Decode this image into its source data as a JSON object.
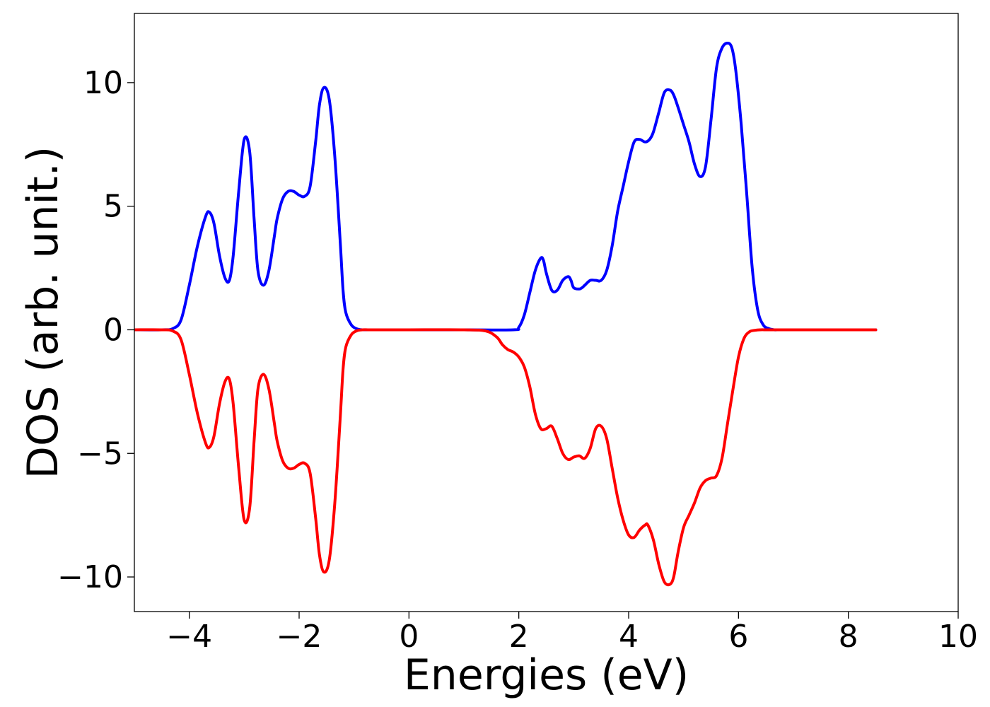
{
  "chart_data": {
    "type": "line",
    "title": "",
    "xlabel": "Energies (eV)",
    "ylabel": "DOS (arb. unit.)",
    "xlim": [
      -5,
      10
    ],
    "ylim": [
      -11.4,
      12.8
    ],
    "xticks": [
      -4,
      -2,
      0,
      2,
      4,
      6,
      8,
      10
    ],
    "xtick_labels": [
      "−4",
      "−2",
      "0",
      "2",
      "4",
      "6",
      "8",
      "10"
    ],
    "yticks": [
      -10,
      -5,
      0,
      5,
      10
    ],
    "ytick_labels": [
      "−10",
      "−5",
      "0",
      "5",
      "10"
    ],
    "grid": false,
    "legend": "none",
    "series": [
      {
        "color": "#0000ff",
        "x": [
          -5,
          -4.5,
          -4.3,
          -4.15,
          -4.0,
          -3.85,
          -3.7,
          -3.63,
          -3.55,
          -3.45,
          -3.35,
          -3.27,
          -3.2,
          -3.1,
          -3.0,
          -2.9,
          -2.82,
          -2.75,
          -2.65,
          -2.55,
          -2.45,
          -2.4,
          -2.3,
          -2.2,
          -2.1,
          -2.0,
          -1.9,
          -1.8,
          -1.7,
          -1.63,
          -1.55,
          -1.45,
          -1.35,
          -1.25,
          -1.2,
          -1.15,
          -1.05,
          -0.95,
          -0.85,
          -0.75,
          -0.65,
          -0.5,
          0,
          1.0,
          1.9,
          2.0,
          2.1,
          2.2,
          2.3,
          2.4,
          2.45,
          2.5,
          2.6,
          2.7,
          2.8,
          2.9,
          2.95,
          3.0,
          3.1,
          3.15,
          3.2,
          3.3,
          3.4,
          3.5,
          3.6,
          3.7,
          3.8,
          3.9,
          4.0,
          4.1,
          4.2,
          4.3,
          4.38,
          4.45,
          4.55,
          4.65,
          4.75,
          4.82,
          4.9,
          5.0,
          5.1,
          5.2,
          5.3,
          5.4,
          5.5,
          5.6,
          5.7,
          5.8,
          5.88,
          5.95,
          6.05,
          6.15,
          6.25,
          6.35,
          6.45,
          6.55,
          6.65,
          6.75,
          7.0,
          8.5
        ],
        "y": [
          0,
          0,
          0.05,
          0.4,
          1.8,
          3.4,
          4.6,
          4.75,
          4.3,
          3.0,
          2.1,
          2.0,
          3.0,
          5.6,
          7.7,
          7.2,
          4.5,
          2.4,
          1.8,
          2.4,
          3.8,
          4.5,
          5.3,
          5.6,
          5.6,
          5.45,
          5.4,
          5.8,
          7.6,
          9.1,
          9.8,
          9.3,
          7.0,
          3.5,
          1.6,
          0.7,
          0.2,
          0.04,
          0,
          0,
          0,
          0,
          0,
          0,
          0,
          0.1,
          0.6,
          1.5,
          2.4,
          2.9,
          2.8,
          2.3,
          1.6,
          1.6,
          2.0,
          2.15,
          2.0,
          1.7,
          1.65,
          1.7,
          1.8,
          2.0,
          2.0,
          2.0,
          2.4,
          3.4,
          4.8,
          5.8,
          6.8,
          7.6,
          7.7,
          7.6,
          7.7,
          8.0,
          8.8,
          9.6,
          9.7,
          9.5,
          9.0,
          8.3,
          7.6,
          6.7,
          6.2,
          6.6,
          8.5,
          10.6,
          11.4,
          11.6,
          11.4,
          10.5,
          8.3,
          5.5,
          2.5,
          0.8,
          0.2,
          0.05,
          0,
          0,
          0,
          0
        ]
      },
      {
        "color": "#ff0000",
        "x": [
          -5,
          -4.5,
          -4.3,
          -4.15,
          -4.0,
          -3.85,
          -3.7,
          -3.63,
          -3.55,
          -3.45,
          -3.35,
          -3.27,
          -3.2,
          -3.1,
          -3.0,
          -2.9,
          -2.82,
          -2.75,
          -2.65,
          -2.55,
          -2.45,
          -2.4,
          -2.3,
          -2.2,
          -2.1,
          -2.0,
          -1.9,
          -1.8,
          -1.7,
          -1.63,
          -1.55,
          -1.45,
          -1.35,
          -1.25,
          -1.2,
          -1.15,
          -1.05,
          -0.95,
          -0.85,
          -0.75,
          -0.65,
          -0.5,
          0,
          1.0,
          1.4,
          1.6,
          1.7,
          1.8,
          1.9,
          2.0,
          2.1,
          2.2,
          2.3,
          2.4,
          2.5,
          2.6,
          2.7,
          2.8,
          2.9,
          3.0,
          3.1,
          3.2,
          3.3,
          3.4,
          3.5,
          3.6,
          3.7,
          3.8,
          3.9,
          4.0,
          4.1,
          4.2,
          4.3,
          4.35,
          4.45,
          4.55,
          4.65,
          4.75,
          4.82,
          4.9,
          5.0,
          5.1,
          5.2,
          5.3,
          5.4,
          5.5,
          5.6,
          5.7,
          5.8,
          5.9,
          6.0,
          6.1,
          6.2,
          6.3,
          6.4,
          6.5,
          6.6,
          6.8,
          7.0,
          8.5
        ],
        "y": [
          0,
          0,
          -0.05,
          -0.4,
          -1.8,
          -3.4,
          -4.6,
          -4.75,
          -4.3,
          -3.0,
          -2.1,
          -2.0,
          -3.0,
          -5.6,
          -7.7,
          -7.2,
          -4.5,
          -2.4,
          -1.8,
          -2.4,
          -3.8,
          -4.5,
          -5.3,
          -5.6,
          -5.6,
          -5.45,
          -5.4,
          -5.8,
          -7.6,
          -9.1,
          -9.8,
          -9.3,
          -7.0,
          -3.5,
          -1.6,
          -0.7,
          -0.2,
          -0.04,
          0,
          0,
          0,
          0,
          0,
          0,
          -0.05,
          -0.3,
          -0.6,
          -0.8,
          -0.9,
          -1.1,
          -1.5,
          -2.3,
          -3.4,
          -4.0,
          -4.0,
          -3.9,
          -4.4,
          -5.0,
          -5.25,
          -5.15,
          -5.1,
          -5.2,
          -4.8,
          -4.0,
          -3.9,
          -4.4,
          -5.6,
          -6.8,
          -7.7,
          -8.3,
          -8.4,
          -8.1,
          -7.9,
          -7.9,
          -8.5,
          -9.5,
          -10.2,
          -10.3,
          -10.0,
          -9.0,
          -8.0,
          -7.5,
          -7.0,
          -6.4,
          -6.1,
          -6.0,
          -5.9,
          -5.2,
          -3.8,
          -2.4,
          -1.1,
          -0.35,
          -0.08,
          -0.02,
          0,
          0,
          0,
          0,
          0,
          0
        ]
      }
    ]
  }
}
